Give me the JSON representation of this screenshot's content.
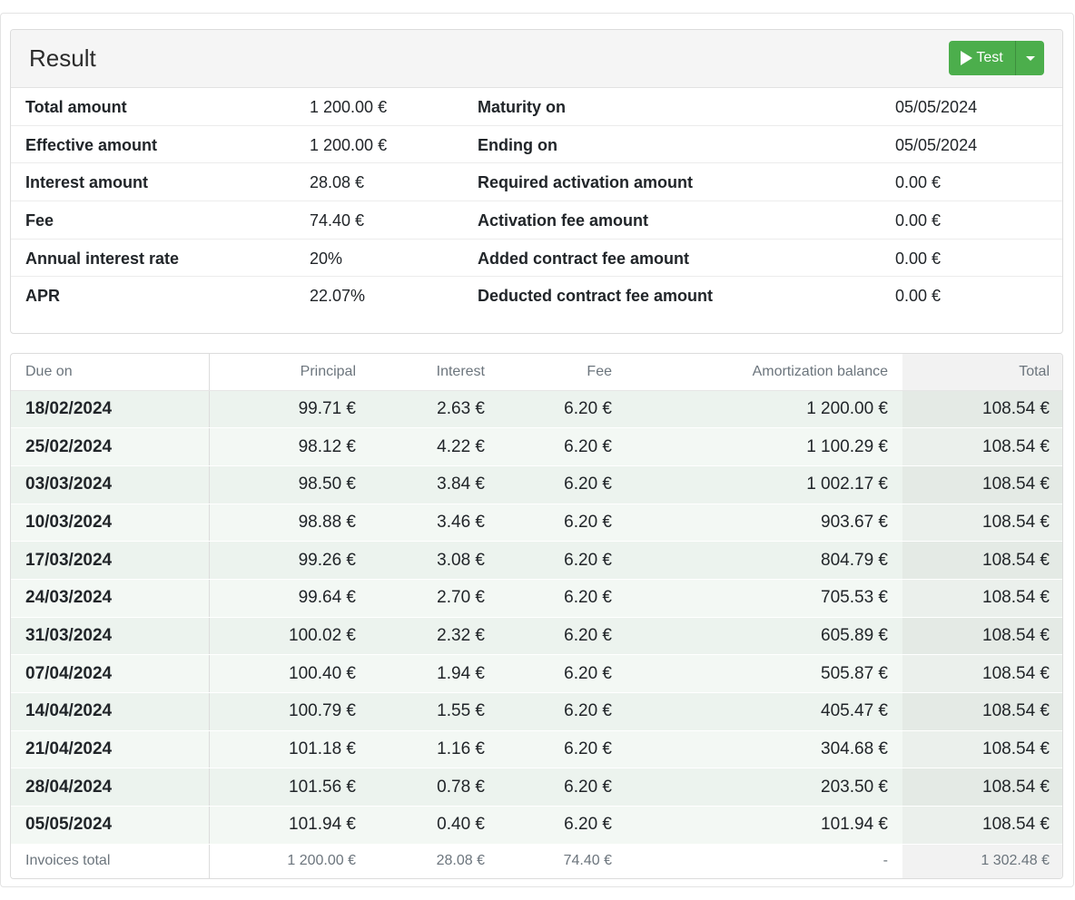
{
  "result": {
    "title": "Result",
    "test_button": "Test"
  },
  "summary": [
    {
      "label1": "Total amount",
      "value1": "1 200.00 €",
      "label2": "Maturity on",
      "value2": "05/05/2024"
    },
    {
      "label1": "Effective amount",
      "value1": "1 200.00 €",
      "label2": "Ending on",
      "value2": "05/05/2024"
    },
    {
      "label1": "Interest amount",
      "value1": "28.08 €",
      "label2": "Required activation amount",
      "value2": "0.00 €"
    },
    {
      "label1": "Fee",
      "value1": "74.40 €",
      "label2": "Activation fee amount",
      "value2": "0.00 €"
    },
    {
      "label1": "Annual interest rate",
      "value1": "20%",
      "label2": "Added contract fee amount",
      "value2": "0.00 €"
    },
    {
      "label1": "APR",
      "value1": "22.07%",
      "label2": "Deducted contract fee amount",
      "value2": "0.00 €"
    }
  ],
  "schedule": {
    "headers": {
      "due_on": "Due on",
      "principal": "Principal",
      "interest": "Interest",
      "fee": "Fee",
      "balance": "Amortization balance",
      "total": "Total"
    },
    "rows": [
      {
        "due_on": "18/02/2024",
        "principal": "99.71 €",
        "interest": "2.63 €",
        "fee": "6.20 €",
        "balance": "1 200.00 €",
        "total": "108.54 €"
      },
      {
        "due_on": "25/02/2024",
        "principal": "98.12 €",
        "interest": "4.22 €",
        "fee": "6.20 €",
        "balance": "1 100.29 €",
        "total": "108.54 €"
      },
      {
        "due_on": "03/03/2024",
        "principal": "98.50 €",
        "interest": "3.84 €",
        "fee": "6.20 €",
        "balance": "1 002.17 €",
        "total": "108.54 €"
      },
      {
        "due_on": "10/03/2024",
        "principal": "98.88 €",
        "interest": "3.46 €",
        "fee": "6.20 €",
        "balance": "903.67 €",
        "total": "108.54 €"
      },
      {
        "due_on": "17/03/2024",
        "principal": "99.26 €",
        "interest": "3.08 €",
        "fee": "6.20 €",
        "balance": "804.79 €",
        "total": "108.54 €"
      },
      {
        "due_on": "24/03/2024",
        "principal": "99.64 €",
        "interest": "2.70 €",
        "fee": "6.20 €",
        "balance": "705.53 €",
        "total": "108.54 €"
      },
      {
        "due_on": "31/03/2024",
        "principal": "100.02 €",
        "interest": "2.32 €",
        "fee": "6.20 €",
        "balance": "605.89 €",
        "total": "108.54 €"
      },
      {
        "due_on": "07/04/2024",
        "principal": "100.40 €",
        "interest": "1.94 €",
        "fee": "6.20 €",
        "balance": "505.87 €",
        "total": "108.54 €"
      },
      {
        "due_on": "14/04/2024",
        "principal": "100.79 €",
        "interest": "1.55 €",
        "fee": "6.20 €",
        "balance": "405.47 €",
        "total": "108.54 €"
      },
      {
        "due_on": "21/04/2024",
        "principal": "101.18 €",
        "interest": "1.16 €",
        "fee": "6.20 €",
        "balance": "304.68 €",
        "total": "108.54 €"
      },
      {
        "due_on": "28/04/2024",
        "principal": "101.56 €",
        "interest": "0.78 €",
        "fee": "6.20 €",
        "balance": "203.50 €",
        "total": "108.54 €"
      },
      {
        "due_on": "05/05/2024",
        "principal": "101.94 €",
        "interest": "0.40 €",
        "fee": "6.20 €",
        "balance": "101.94 €",
        "total": "108.54 €"
      }
    ],
    "footer": {
      "due_on": "Invoices total",
      "principal": "1 200.00 €",
      "interest": "28.08 €",
      "fee": "74.40 €",
      "balance": "-",
      "total": "1 302.48 €"
    }
  },
  "colors": {
    "button_green": "#4cae4c",
    "header_bg": "#f5f5f5",
    "row_tint": "#ecf3ee"
  }
}
